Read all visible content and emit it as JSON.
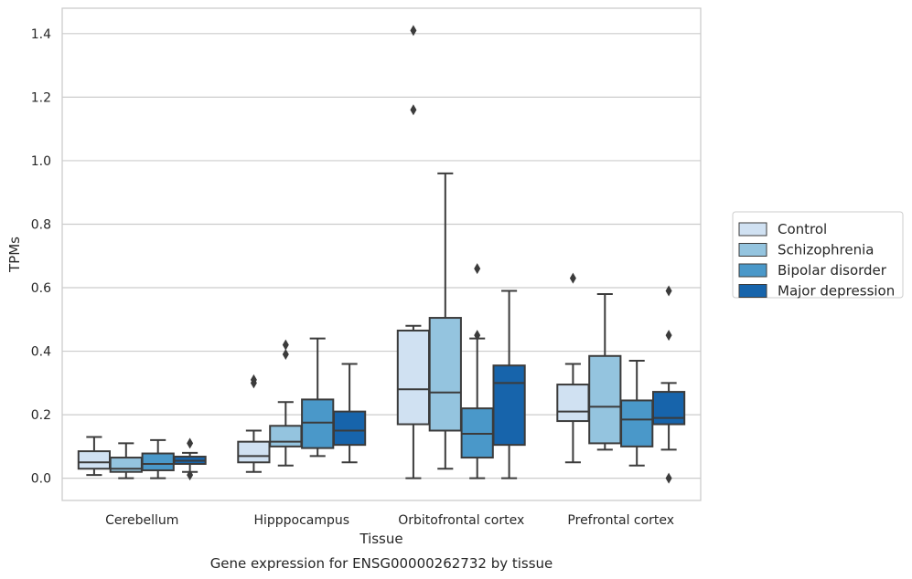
{
  "chart_data": {
    "type": "box",
    "title": "",
    "caption": "Gene expression for ENSG00000262732 by tissue",
    "xlabel": "Tissue",
    "ylabel": "TPMs",
    "ylim": [
      -0.07,
      1.48
    ],
    "yticks": [
      0.0,
      0.2,
      0.4,
      0.6,
      0.8,
      1.0,
      1.2,
      1.4
    ],
    "ytick_labels": [
      "0.0",
      "0.2",
      "0.4",
      "0.6",
      "0.8",
      "1.0",
      "1.2",
      "1.4"
    ],
    "grid": "horizontal",
    "legend_position": "right",
    "categories": [
      "Cerebellum",
      "Hipppocampus",
      "Orbitofrontal cortex",
      "Prefrontal cortex"
    ],
    "series": [
      {
        "name": "Control",
        "color": "#d0e1f2",
        "boxes": [
          {
            "whisker_low": 0.01,
            "q1": 0.03,
            "median": 0.05,
            "q3": 0.085,
            "whisker_high": 0.13,
            "outliers": []
          },
          {
            "whisker_low": 0.02,
            "q1": 0.05,
            "median": 0.07,
            "q3": 0.115,
            "whisker_high": 0.15,
            "outliers": [
              0.3,
              0.31
            ]
          },
          {
            "whisker_low": 0.0,
            "q1": 0.17,
            "median": 0.28,
            "q3": 0.465,
            "whisker_high": 0.48,
            "outliers": [
              1.16,
              1.41
            ]
          },
          {
            "whisker_low": 0.05,
            "q1": 0.18,
            "median": 0.21,
            "q3": 0.295,
            "whisker_high": 0.36,
            "outliers": [
              0.63
            ]
          }
        ]
      },
      {
        "name": "Schizophrenia",
        "color": "#94c4df",
        "boxes": [
          {
            "whisker_low": 0.0,
            "q1": 0.02,
            "median": 0.03,
            "q3": 0.065,
            "whisker_high": 0.11,
            "outliers": []
          },
          {
            "whisker_low": 0.04,
            "q1": 0.1,
            "median": 0.115,
            "q3": 0.165,
            "whisker_high": 0.24,
            "outliers": [
              0.39,
              0.42
            ]
          },
          {
            "whisker_low": 0.03,
            "q1": 0.15,
            "median": 0.27,
            "q3": 0.505,
            "whisker_high": 0.96,
            "outliers": []
          },
          {
            "whisker_low": 0.09,
            "q1": 0.11,
            "median": 0.225,
            "q3": 0.385,
            "whisker_high": 0.58,
            "outliers": []
          }
        ]
      },
      {
        "name": "Bipolar disorder",
        "color": "#4a98c9",
        "boxes": [
          {
            "whisker_low": 0.0,
            "q1": 0.025,
            "median": 0.045,
            "q3": 0.078,
            "whisker_high": 0.12,
            "outliers": []
          },
          {
            "whisker_low": 0.07,
            "q1": 0.095,
            "median": 0.175,
            "q3": 0.248,
            "whisker_high": 0.44,
            "outliers": []
          },
          {
            "whisker_low": 0.0,
            "q1": 0.065,
            "median": 0.14,
            "q3": 0.22,
            "whisker_high": 0.44,
            "outliers": [
              0.45,
              0.66
            ]
          },
          {
            "whisker_low": 0.04,
            "q1": 0.1,
            "median": 0.185,
            "q3": 0.245,
            "whisker_high": 0.37,
            "outliers": []
          }
        ]
      },
      {
        "name": "Major depression",
        "color": "#1764ab",
        "boxes": [
          {
            "whisker_low": 0.02,
            "q1": 0.045,
            "median": 0.055,
            "q3": 0.068,
            "whisker_high": 0.08,
            "outliers": [
              0.01,
              0.11
            ]
          },
          {
            "whisker_low": 0.05,
            "q1": 0.105,
            "median": 0.15,
            "q3": 0.21,
            "whisker_high": 0.36,
            "outliers": []
          },
          {
            "whisker_low": 0.0,
            "q1": 0.105,
            "median": 0.3,
            "q3": 0.355,
            "whisker_high": 0.59,
            "outliers": []
          },
          {
            "whisker_low": 0.09,
            "q1": 0.17,
            "median": 0.19,
            "q3": 0.272,
            "whisker_high": 0.3,
            "outliers": [
              0.0,
              0.45,
              0.59
            ]
          }
        ]
      }
    ]
  }
}
